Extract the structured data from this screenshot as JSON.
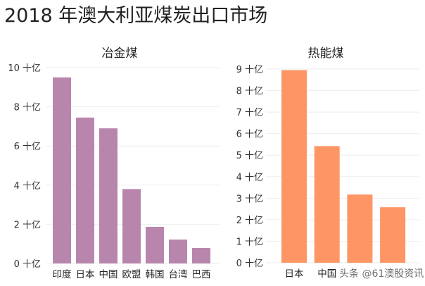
{
  "title": "2018 年澳大利亚煤炭出口市场",
  "watermark": "头条 @61澳股资讯",
  "chart_data": [
    {
      "type": "bar",
      "title": "冶金煤",
      "categories": [
        "印度",
        "日本",
        "中国",
        "欧盟",
        "韩国",
        "台湾",
        "巴西"
      ],
      "values": [
        9.5,
        7.45,
        6.9,
        3.8,
        1.87,
        1.22,
        0.79
      ],
      "unit": "十亿",
      "ylim": [
        0,
        10
      ],
      "yticks": [
        0,
        2,
        4,
        6,
        8,
        10
      ],
      "grid": true,
      "color": "#b886ad"
    },
    {
      "type": "bar",
      "title": "热能煤",
      "categories": [
        "日本",
        "中国",
        "",
        ""
      ],
      "values": [
        8.95,
        5.42,
        3.17,
        2.58
      ],
      "unit": "十亿",
      "ylim": [
        0,
        9
      ],
      "yticks": [
        0,
        1,
        2,
        3,
        4,
        5,
        6,
        7,
        8,
        9
      ],
      "grid": true,
      "color": "#fd9664"
    }
  ]
}
